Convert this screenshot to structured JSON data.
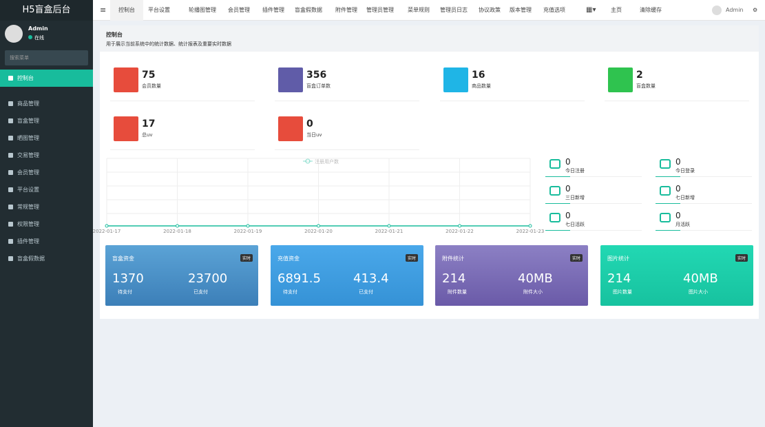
{
  "sidebar": {
    "logo": "H5盲盒后台",
    "user": "Admin",
    "status": "在线",
    "search_placeholder": "搜索菜单",
    "menu": [
      "控制台",
      "商品管理",
      "盲盒管理",
      "晒图管理",
      "交易管理",
      "会员管理",
      "平台设置",
      "常规管理",
      "权限管理",
      "插件管理",
      "盲盒假数据"
    ]
  },
  "topnav": {
    "tabs": [
      "控制台",
      "平台设置",
      "轮播图管理",
      "会员管理",
      "插件管理",
      "盲盒假数据",
      "附件管理",
      "管理员管理",
      "菜单规则",
      "管理员日志",
      "协议政策",
      "版本管理",
      "充值选项"
    ],
    "right": [
      "主页",
      "清除缓存",
      "Admin"
    ]
  },
  "header": {
    "title": "控制台",
    "subtitle": "用于展示当前系统中的统计数据、统计报表及重要实时数据"
  },
  "stats": [
    {
      "value": "75",
      "label": "会员数量"
    },
    {
      "value": "356",
      "label": "盲盒订单数"
    },
    {
      "value": "16",
      "label": "商品数量"
    },
    {
      "value": "2",
      "label": "盲盒数量"
    },
    {
      "value": "17",
      "label": "总uv"
    },
    {
      "value": "0",
      "label": "当日uv"
    }
  ],
  "chart_data": {
    "type": "line",
    "categories": [
      "2022-01-17",
      "2022-01-18",
      "2022-01-19",
      "2022-01-20",
      "2022-01-21",
      "2022-01-22",
      "2022-01-23"
    ],
    "series": [
      {
        "name": "注册用户数",
        "color": "#18bc9c",
        "values": [
          0,
          0,
          0,
          0,
          0,
          0,
          0
        ]
      }
    ],
    "ylim": [
      0,
      1
    ]
  },
  "mini_stats": [
    {
      "value": "0",
      "label": "今日注册"
    },
    {
      "value": "0",
      "label": "今日登录"
    },
    {
      "value": "0",
      "label": "三日新增"
    },
    {
      "value": "0",
      "label": "七日新增"
    },
    {
      "value": "0",
      "label": "七日活跃"
    },
    {
      "value": "0",
      "label": "月活跃"
    }
  ],
  "cards": [
    {
      "title": "盲盒资金",
      "badge": "实时",
      "a": "1370",
      "a_label": "待支付",
      "b": "23700",
      "b_label": "已支付"
    },
    {
      "title": "充值资金",
      "badge": "实时",
      "a": "6891.5",
      "a_label": "待支付",
      "b": "413.4",
      "b_label": "已支付"
    },
    {
      "title": "附件统计",
      "badge": "实时",
      "a": "214",
      "a_label": "附件数量",
      "b": "40MB",
      "b_label": "附件大小"
    },
    {
      "title": "图片统计",
      "badge": "实时",
      "a": "214",
      "a_label": "图片数量",
      "b": "40MB",
      "b_label": "图片大小"
    }
  ]
}
